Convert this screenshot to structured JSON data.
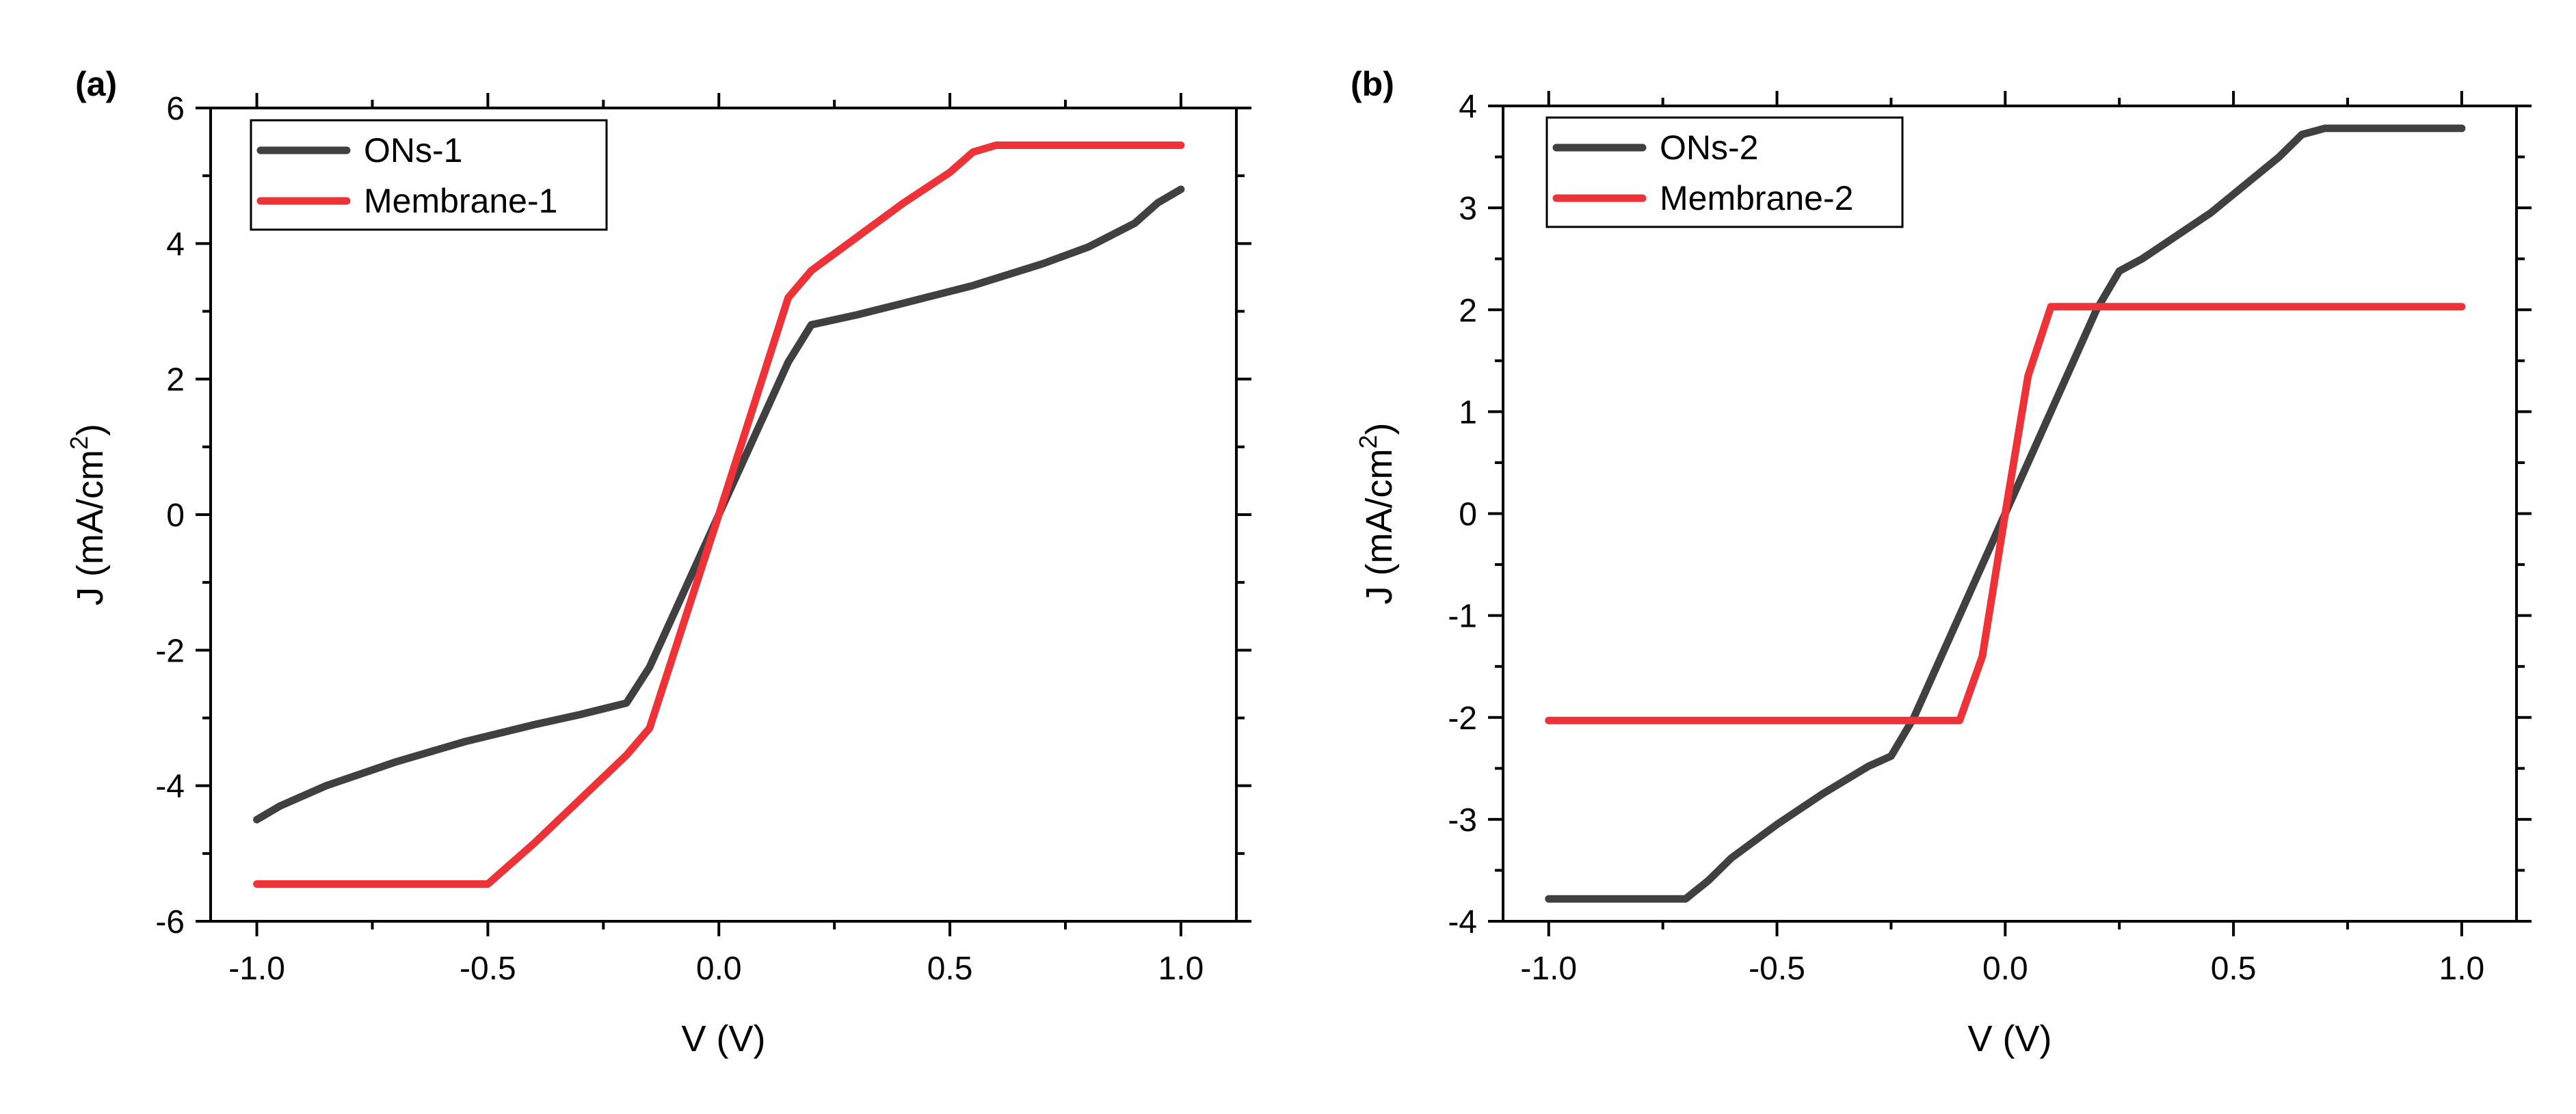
{
  "chart_data": [
    {
      "type": "line",
      "panel_label": "(a)",
      "title": "",
      "xlabel": "V (V)",
      "ylabel_main": "J (mA/cm",
      "ylabel_sup": "2",
      "ylabel_end": ")",
      "xlim": [
        -1.1,
        1.12
      ],
      "ylim": [
        -6,
        6
      ],
      "xticks": [
        -1.0,
        -0.5,
        0.0,
        0.5,
        1.0
      ],
      "xtick_labels": [
        "-1.0",
        "-0.5",
        "0.0",
        "0.5",
        "1.0"
      ],
      "yticks": [
        -6,
        -4,
        -2,
        0,
        2,
        4,
        6
      ],
      "ytick_labels": [
        "-6",
        "-4",
        "-2",
        "0",
        "2",
        "4",
        "6"
      ],
      "legend_position": "top-left",
      "grid": false,
      "series": [
        {
          "name": "ONs-1",
          "color": "#404040",
          "points": [
            [
              -1.0,
              -4.5
            ],
            [
              -0.95,
              -4.3
            ],
            [
              -0.85,
              -4.0
            ],
            [
              -0.7,
              -3.65
            ],
            [
              -0.55,
              -3.35
            ],
            [
              -0.4,
              -3.1
            ],
            [
              -0.3,
              -2.95
            ],
            [
              -0.2,
              -2.78
            ],
            [
              -0.15,
              -2.25
            ],
            [
              -0.1,
              -1.5
            ],
            [
              0.0,
              0.0
            ],
            [
              0.1,
              1.5
            ],
            [
              0.15,
              2.25
            ],
            [
              0.2,
              2.8
            ],
            [
              0.3,
              2.95
            ],
            [
              0.4,
              3.12
            ],
            [
              0.55,
              3.38
            ],
            [
              0.7,
              3.7
            ],
            [
              0.8,
              3.95
            ],
            [
              0.9,
              4.3
            ],
            [
              0.95,
              4.6
            ],
            [
              1.0,
              4.8
            ]
          ]
        },
        {
          "name": "Membrane-1",
          "color": "#ee3338",
          "points": [
            [
              -1.0,
              -5.45
            ],
            [
              -0.5,
              -5.45
            ],
            [
              -0.4,
              -4.85
            ],
            [
              -0.3,
              -4.2
            ],
            [
              -0.2,
              -3.55
            ],
            [
              -0.15,
              -3.15
            ],
            [
              0.0,
              0.0
            ],
            [
              0.15,
              3.2
            ],
            [
              0.2,
              3.6
            ],
            [
              0.3,
              4.1
            ],
            [
              0.4,
              4.6
            ],
            [
              0.5,
              5.05
            ],
            [
              0.55,
              5.35
            ],
            [
              0.6,
              5.45
            ],
            [
              1.0,
              5.45
            ]
          ]
        }
      ]
    },
    {
      "type": "line",
      "panel_label": "(b)",
      "title": "",
      "xlabel": "V (V)",
      "ylabel_main": "J (mA/cm",
      "ylabel_sup": "2",
      "ylabel_end": ")",
      "xlim": [
        -1.1,
        1.12
      ],
      "ylim": [
        -4,
        4
      ],
      "xticks": [
        -1.0,
        -0.5,
        0.0,
        0.5,
        1.0
      ],
      "xtick_labels": [
        "-1.0",
        "-0.5",
        "0.0",
        "0.5",
        "1.0"
      ],
      "yticks": [
        -4,
        -3,
        -2,
        -1,
        0,
        1,
        2,
        3,
        4
      ],
      "ytick_labels": [
        "-4",
        "-3",
        "-2",
        "-1",
        "0",
        "1",
        "2",
        "3",
        "4"
      ],
      "legend_position": "top-left",
      "grid": false,
      "series": [
        {
          "name": "ONs-2",
          "color": "#404040",
          "points": [
            [
              -1.0,
              -3.78
            ],
            [
              -0.7,
              -3.78
            ],
            [
              -0.65,
              -3.6
            ],
            [
              -0.6,
              -3.38
            ],
            [
              -0.5,
              -3.05
            ],
            [
              -0.4,
              -2.75
            ],
            [
              -0.3,
              -2.48
            ],
            [
              -0.25,
              -2.38
            ],
            [
              -0.2,
              -2.0
            ],
            [
              0.0,
              0.0
            ],
            [
              0.2,
              2.0
            ],
            [
              0.25,
              2.38
            ],
            [
              0.3,
              2.5
            ],
            [
              0.45,
              2.95
            ],
            [
              0.6,
              3.5
            ],
            [
              0.65,
              3.72
            ],
            [
              0.7,
              3.78
            ],
            [
              1.0,
              3.78
            ]
          ]
        },
        {
          "name": "Membrane-2",
          "color": "#ee3338",
          "points": [
            [
              -1.0,
              -2.03
            ],
            [
              -0.1,
              -2.03
            ],
            [
              -0.05,
              -1.4
            ],
            [
              0.0,
              0.0
            ],
            [
              0.05,
              1.35
            ],
            [
              0.1,
              2.03
            ],
            [
              1.0,
              2.03
            ]
          ]
        }
      ]
    }
  ]
}
